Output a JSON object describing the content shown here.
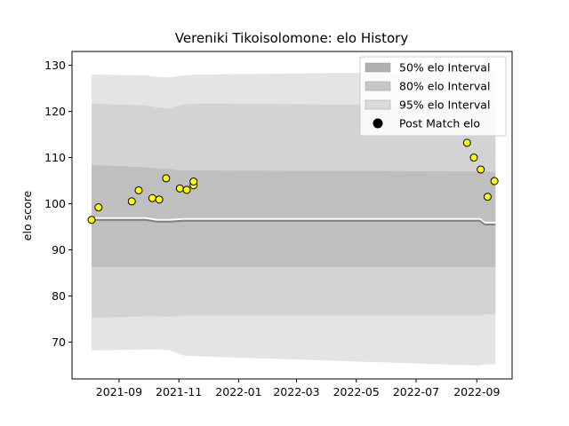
{
  "chart_data": {
    "type": "scatter",
    "title": "Vereniki Tikoisolomone: elo History",
    "xlabel": "",
    "ylabel": "elo score",
    "ylim": [
      62,
      133
    ],
    "xlim": [
      "2021-07-15",
      "2022-10-07"
    ],
    "y_ticks": [
      70,
      80,
      90,
      100,
      110,
      120,
      130
    ],
    "x_ticks": [
      "2021-09",
      "2021-11",
      "2022-01",
      "2022-03",
      "2022-05",
      "2022-07",
      "2022-09"
    ],
    "legend_position": "top-right",
    "colors": {
      "band_50": "#bfbfbf",
      "band_80": "#d3d3d3",
      "band_95": "#e4e4e4",
      "mean_line": "#7f7f7f",
      "point_fill": "#ffff00",
      "point_edge": "#000000"
    },
    "bands": {
      "dates": [
        "2021-08-04",
        "2021-09-28",
        "2021-10-10",
        "2021-10-23",
        "2021-11-05",
        "2021-11-22",
        "2022-09-04",
        "2022-09-09",
        "2022-09-20"
      ],
      "upper_95": [
        128.0,
        127.8,
        127.5,
        127.4,
        127.8,
        128.0,
        128.7,
        128.8,
        128.8
      ],
      "upper_80": [
        121.7,
        121.3,
        120.8,
        120.7,
        121.5,
        121.7,
        121.3,
        121.4,
        121.4
      ],
      "upper_50": [
        108.4,
        107.9,
        107.6,
        107.5,
        107.2,
        107.2,
        107.0,
        106.9,
        106.9
      ],
      "mean": [
        96.5,
        96.5,
        96.1,
        96.1,
        96.3,
        96.3,
        96.3,
        95.5,
        95.5
      ],
      "lower_50": [
        86.3,
        86.3,
        86.3,
        86.3,
        86.3,
        86.3,
        86.3,
        86.3,
        86.3
      ],
      "lower_80": [
        75.2,
        75.6,
        75.6,
        75.5,
        75.7,
        75.7,
        75.7,
        76.0,
        76.0
      ],
      "lower_95": [
        68.2,
        68.4,
        68.4,
        68.2,
        67.1,
        66.9,
        64.9,
        65.2,
        65.2
      ]
    },
    "series": [
      {
        "name": "Post Match elo",
        "x": [
          "2021-08-04",
          "2021-08-11",
          "2021-09-14",
          "2021-09-21",
          "2021-10-05",
          "2021-10-12",
          "2021-10-19",
          "2021-11-02",
          "2021-11-09",
          "2021-11-16",
          "2021-11-16",
          "2022-08-22",
          "2022-08-29",
          "2022-09-05",
          "2022-09-12",
          "2022-09-19"
        ],
        "y": [
          96.5,
          99.2,
          100.5,
          102.9,
          101.2,
          100.9,
          105.5,
          103.3,
          103.0,
          104.0,
          104.8,
          113.2,
          110.0,
          107.4,
          101.5,
          104.9
        ]
      }
    ],
    "legend": [
      {
        "label": "50% elo Interval",
        "kind": "band_50"
      },
      {
        "label": "80% elo Interval",
        "kind": "band_80"
      },
      {
        "label": "95% elo Interval",
        "kind": "band_95"
      },
      {
        "label": "Post Match elo",
        "kind": "marker"
      }
    ]
  }
}
